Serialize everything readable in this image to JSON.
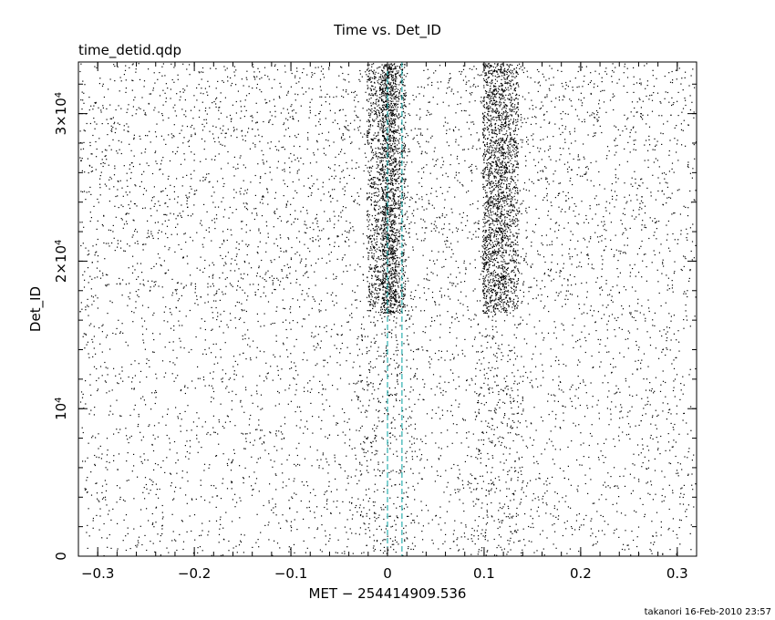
{
  "chart_data": {
    "type": "scatter",
    "title": "Time vs. Det_ID",
    "subtitle": "time_detid.qdp",
    "xlabel": "MET − 254414909.536",
    "ylabel": "Det_ID",
    "xlim": [
      -0.32,
      0.32
    ],
    "ylim": [
      0,
      33500
    ],
    "x_ticks": [
      {
        "value": -0.3,
        "label": "−0.3"
      },
      {
        "value": -0.2,
        "label": "−0.2"
      },
      {
        "value": -0.1,
        "label": "−0.1"
      },
      {
        "value": 0.0,
        "label": "0"
      },
      {
        "value": 0.1,
        "label": "0.1"
      },
      {
        "value": 0.2,
        "label": "0.2"
      },
      {
        "value": 0.3,
        "label": "0.3"
      }
    ],
    "y_ticks": [
      {
        "value": 0,
        "base": "0",
        "exp": ""
      },
      {
        "value": 10000,
        "base": "10",
        "exp": "4"
      },
      {
        "value": 20000,
        "base": "2×10",
        "exp": "4"
      },
      {
        "value": 30000,
        "base": "3×10",
        "exp": "4"
      }
    ],
    "reference_lines": [
      {
        "x": 0.0,
        "color": "#00a0a0",
        "style": "dashed"
      },
      {
        "x": 0.015,
        "color": "#00a0a0",
        "style": "dashed"
      }
    ],
    "point_density": [
      {
        "x_range": [
          -0.32,
          0.32
        ],
        "y_range": [
          0,
          33500
        ],
        "count": 5200
      },
      {
        "x_range": [
          -0.022,
          0.018
        ],
        "y_range": [
          16500,
          33500
        ],
        "count": 1500
      },
      {
        "x_range": [
          -0.006,
          0.008
        ],
        "y_range": [
          16500,
          33500
        ],
        "count": 800
      },
      {
        "x_range": [
          0.098,
          0.135
        ],
        "y_range": [
          16500,
          33500
        ],
        "count": 1500
      },
      {
        "x_range": [
          0.098,
          0.122
        ],
        "y_range": [
          16500,
          33500
        ],
        "count": 500
      },
      {
        "x_range": [
          -0.03,
          0.03
        ],
        "y_range": [
          0,
          16500
        ],
        "count": 250
      },
      {
        "x_range": [
          0.09,
          0.14
        ],
        "y_range": [
          0,
          16500
        ],
        "count": 250
      },
      {
        "x_range": [
          -0.32,
          0.32
        ],
        "y_range": [
          16500,
          33500
        ],
        "count": 900
      }
    ],
    "point_color": "#000000",
    "grid": false,
    "legend": "none"
  },
  "footer": "takanori 16-Feb-2010 23:57"
}
